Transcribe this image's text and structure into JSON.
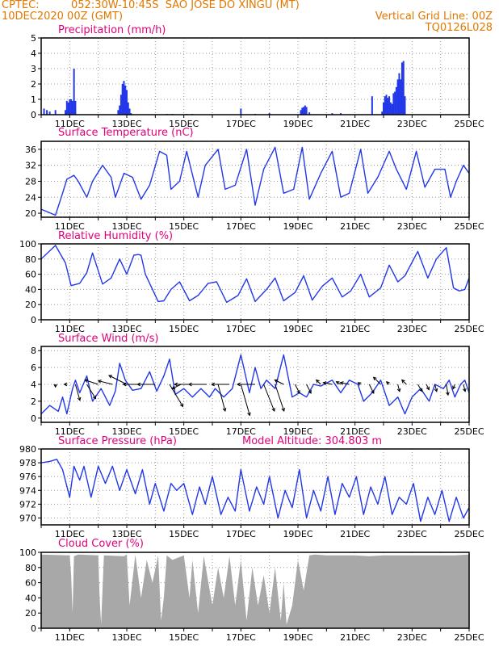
{
  "header": {
    "source": "CPTEC:",
    "location": "052:30W-10:45S  SAO JOSE DO XINGU (MT)",
    "run": "10DEC2020 00Z (GMT)",
    "grid_note": "Vertical Grid Line: 00Z",
    "code": "TQ0126L028"
  },
  "colors": {
    "header": "#e07800",
    "title": "#e0007a",
    "line": "#2238e8",
    "cloud": "#a8a8a8",
    "grid": "#9a9a9a"
  },
  "x_axis": {
    "start_day": 10,
    "end_day": 25,
    "tick_labels": [
      {
        "day": 11,
        "label": "11DEC"
      },
      {
        "day": 13,
        "label": "13DEC"
      },
      {
        "day": 15,
        "label": "15DEC"
      },
      {
        "day": 17,
        "label": "17DEC"
      },
      {
        "day": 19,
        "label": "19DEC"
      },
      {
        "day": 21,
        "label": "21DEC"
      },
      {
        "day": 23,
        "label": "23DEC"
      },
      {
        "day": 25,
        "label": "25DEC"
      }
    ]
  },
  "chart_data": [
    {
      "id": "precip",
      "type": "bar",
      "title": "Precipitation (mm/h)",
      "ylim": [
        0,
        5
      ],
      "yticks": [
        0,
        1,
        2,
        3,
        4,
        5
      ],
      "x": [
        10.1,
        10.2,
        10.3,
        10.5,
        10.85,
        10.9,
        10.95,
        11.0,
        11.05,
        11.1,
        11.15,
        11.2,
        12.7,
        12.75,
        12.8,
        12.85,
        12.9,
        12.95,
        13.0,
        13.05,
        13.1,
        13.15,
        14.4,
        14.5,
        14.6,
        15.1,
        15.3,
        17.0,
        17.5,
        18.0,
        19.1,
        19.15,
        19.2,
        19.25,
        19.3,
        19.4,
        20.2,
        20.5,
        21.6,
        21.95,
        22.0,
        22.05,
        22.1,
        22.15,
        22.2,
        22.25,
        22.3,
        22.35,
        22.4,
        22.45,
        22.5,
        22.55,
        22.6,
        22.65,
        22.7,
        22.75
      ],
      "values": [
        0.4,
        0.3,
        0.2,
        0.3,
        0.3,
        0.9,
        0.8,
        1.0,
        1.0,
        0.9,
        3.0,
        0.9,
        0.3,
        0.6,
        1.3,
        2.0,
        2.2,
        1.9,
        1.6,
        0.8,
        0.4,
        0.1,
        0.05,
        0.03,
        0.05,
        0.05,
        0.05,
        0.4,
        0.05,
        0.1,
        0.3,
        0.45,
        0.5,
        0.6,
        0.5,
        0.15,
        0.1,
        0.1,
        1.2,
        0.2,
        0.8,
        1.2,
        1.3,
        1.1,
        1.2,
        0.8,
        0.7,
        1.4,
        1.5,
        1.8,
        2.3,
        2.7,
        2.3,
        3.4,
        3.5,
        1.2
      ]
    },
    {
      "id": "temp",
      "type": "line",
      "title": "Surface Temperature (nC)",
      "ylim": [
        19,
        38
      ],
      "yticks": [
        20,
        24,
        28,
        32,
        36
      ],
      "x": [
        10.0,
        10.5,
        10.75,
        10.9,
        11.15,
        11.3,
        11.6,
        11.8,
        12.15,
        12.45,
        12.6,
        12.9,
        13.2,
        13.5,
        13.8,
        14.15,
        14.4,
        14.55,
        14.85,
        15.1,
        15.5,
        15.75,
        16.2,
        16.45,
        16.8,
        17.2,
        17.5,
        17.8,
        18.2,
        18.5,
        18.85,
        19.15,
        19.4,
        19.8,
        20.2,
        20.5,
        20.8,
        21.2,
        21.45,
        21.8,
        22.2,
        22.45,
        22.8,
        23.15,
        23.45,
        23.8,
        24.15,
        24.35,
        24.55,
        24.8,
        25.0
      ],
      "values": [
        21,
        19.5,
        25,
        28.5,
        29.5,
        28,
        24,
        28,
        32,
        29,
        24,
        30,
        29,
        23.5,
        27,
        35.5,
        34.5,
        26,
        28,
        35.5,
        24,
        32,
        36,
        26,
        27,
        36,
        22,
        31,
        36.5,
        25,
        26,
        36.5,
        23.5,
        30,
        35.5,
        24,
        25,
        36,
        25,
        29,
        35.5,
        31,
        26,
        35.5,
        26.5,
        31,
        31,
        24,
        28,
        32,
        30
      ]
    },
    {
      "id": "rh",
      "type": "line",
      "title": "Relative Humidity (%)",
      "ylim": [
        0,
        100
      ],
      "yticks": [
        0,
        20,
        40,
        60,
        80,
        100
      ],
      "x": [
        10.0,
        10.5,
        10.85,
        11.05,
        11.35,
        11.6,
        11.8,
        12.15,
        12.45,
        12.75,
        13.0,
        13.25,
        13.4,
        13.5,
        13.65,
        14.1,
        14.3,
        14.55,
        14.85,
        15.2,
        15.5,
        15.85,
        16.15,
        16.5,
        16.9,
        17.2,
        17.5,
        17.9,
        18.2,
        18.5,
        18.9,
        19.2,
        19.5,
        19.85,
        20.2,
        20.55,
        20.85,
        21.2,
        21.5,
        21.9,
        22.2,
        22.5,
        22.75,
        23.2,
        23.55,
        23.85,
        24.2,
        24.45,
        24.65,
        24.85,
        25.0
      ],
      "values": [
        80,
        98,
        75,
        45,
        48,
        62,
        88,
        47,
        55,
        80,
        60,
        85,
        86,
        85,
        60,
        24,
        25,
        40,
        50,
        25,
        32,
        48,
        50,
        23,
        32,
        54,
        24,
        40,
        55,
        25,
        36,
        58,
        26,
        44,
        55,
        30,
        38,
        60,
        30,
        42,
        72,
        50,
        58,
        90,
        55,
        80,
        95,
        42,
        38,
        40,
        55
      ]
    },
    {
      "id": "wind",
      "type": "line",
      "title": "Surface Wind (m/s)",
      "ylim": [
        -0.5,
        8.5
      ],
      "yticks": [
        0,
        2,
        4,
        6,
        8
      ],
      "x": [
        10.0,
        10.3,
        10.6,
        10.75,
        10.9,
        11.0,
        11.1,
        11.2,
        11.35,
        11.6,
        11.8,
        12.1,
        12.4,
        12.6,
        12.75,
        12.95,
        13.2,
        13.5,
        13.8,
        14.05,
        14.3,
        14.5,
        14.7,
        15.0,
        15.3,
        15.6,
        15.9,
        16.1,
        16.4,
        16.7,
        17.0,
        17.3,
        17.5,
        17.7,
        17.9,
        18.2,
        18.5,
        18.8,
        19.05,
        19.3,
        19.55,
        19.8,
        20.2,
        20.5,
        20.8,
        21.1,
        21.3,
        21.6,
        21.9,
        22.2,
        22.5,
        22.75,
        23.0,
        23.3,
        23.6,
        23.8,
        24.1,
        24.3,
        24.5,
        24.7,
        24.85,
        25.0
      ],
      "values": [
        0.5,
        1.5,
        0.8,
        2.5,
        0.5,
        2.0,
        3.5,
        4.5,
        3.0,
        5.0,
        2.0,
        3.5,
        1.5,
        3.2,
        6.5,
        4.5,
        3.3,
        3.5,
        5.5,
        3.2,
        5.0,
        7.0,
        2.8,
        3.5,
        2.5,
        3.5,
        2.5,
        3.5,
        2.5,
        3.5,
        7.5,
        3.0,
        6.0,
        3.5,
        4.5,
        3.5,
        7.5,
        2.5,
        3.0,
        2.5,
        4.0,
        3.8,
        4.5,
        3.0,
        4.5,
        4.0,
        2.0,
        3.0,
        4.5,
        1.5,
        2.5,
        0.5,
        2.5,
        3.5,
        2.0,
        4.0,
        3.5,
        4.5,
        2.5,
        4.0,
        4.5,
        3.0
      ],
      "arrows": [
        {
          "x": 10.5,
          "u": 0,
          "v": 0.3
        },
        {
          "x": 10.9,
          "u": -0.3,
          "v": 0
        },
        {
          "x": 11.2,
          "u": 0.5,
          "v": 1.8
        },
        {
          "x": 11.6,
          "u": 1.0,
          "v": 1.6
        },
        {
          "x": 12.0,
          "u": -1.5,
          "v": -0.5
        },
        {
          "x": 12.5,
          "u": -1.6,
          "v": -0.4
        },
        {
          "x": 13.0,
          "u": -2.0,
          "v": -1.0
        },
        {
          "x": 13.5,
          "u": -2.0,
          "v": 0
        },
        {
          "x": 14.0,
          "u": -2.0,
          "v": 0
        },
        {
          "x": 14.5,
          "u": 1.5,
          "v": 2.5
        },
        {
          "x": 14.9,
          "u": -1.0,
          "v": 0.5
        },
        {
          "x": 15.3,
          "u": -2.0,
          "v": 0
        },
        {
          "x": 15.8,
          "u": -2.0,
          "v": 0
        },
        {
          "x": 16.2,
          "u": 0.8,
          "v": 3.0
        },
        {
          "x": 16.6,
          "u": -2.0,
          "v": 0
        },
        {
          "x": 17.0,
          "u": 1.0,
          "v": 3.5
        },
        {
          "x": 17.5,
          "u": -2.0,
          "v": 0
        },
        {
          "x": 17.8,
          "u": 1.2,
          "v": 3.0
        },
        {
          "x": 18.2,
          "u": 1.0,
          "v": 3.0
        },
        {
          "x": 18.5,
          "u": -1.0,
          "v": -0.5
        },
        {
          "x": 18.9,
          "u": 0.5,
          "v": 1.0
        },
        {
          "x": 19.3,
          "u": 0.5,
          "v": 1.0
        },
        {
          "x": 19.8,
          "u": -0.5,
          "v": -0.5
        },
        {
          "x": 20.2,
          "u": -1.0,
          "v": -0.2
        },
        {
          "x": 20.5,
          "u": -0.5,
          "v": -0.3
        },
        {
          "x": 20.8,
          "u": -1.0,
          "v": -0.2
        },
        {
          "x": 21.2,
          "u": -0.3,
          "v": -0.2
        },
        {
          "x": 21.5,
          "u": 0.5,
          "v": 1.0
        },
        {
          "x": 21.9,
          "u": -0.8,
          "v": -0.8
        },
        {
          "x": 22.2,
          "u": -0.3,
          "v": -0.3
        },
        {
          "x": 22.5,
          "u": 0.2,
          "v": 0.8
        },
        {
          "x": 22.8,
          "u": -0.5,
          "v": -0.5
        },
        {
          "x": 23.2,
          "u": 0.5,
          "v": 0.8
        },
        {
          "x": 23.5,
          "u": 0.3,
          "v": 0.6
        },
        {
          "x": 23.8,
          "u": 0.2,
          "v": 0.8
        },
        {
          "x": 24.2,
          "u": 0.2,
          "v": 1.2
        },
        {
          "x": 24.5,
          "u": -0.2,
          "v": 0.5
        },
        {
          "x": 24.8,
          "u": 0.2,
          "v": 0.8
        }
      ]
    },
    {
      "id": "pres",
      "type": "line",
      "title": "Surface Pressure (hPa)",
      "annotation": "Model Altitude: 304.803 m",
      "ylim": [
        969,
        980
      ],
      "yticks": [
        970,
        972,
        974,
        976,
        978,
        980
      ],
      "x": [
        10.0,
        10.3,
        10.55,
        10.75,
        11.0,
        11.15,
        11.35,
        11.5,
        11.75,
        12.0,
        12.25,
        12.5,
        12.75,
        13.0,
        13.3,
        13.55,
        13.8,
        14.0,
        14.3,
        14.55,
        14.75,
        15.0,
        15.3,
        15.55,
        15.75,
        16.0,
        16.3,
        16.55,
        16.8,
        17.0,
        17.3,
        17.55,
        17.8,
        18.0,
        18.3,
        18.55,
        18.8,
        19.05,
        19.3,
        19.55,
        19.8,
        20.05,
        20.3,
        20.55,
        20.8,
        21.05,
        21.3,
        21.55,
        21.8,
        22.05,
        22.3,
        22.55,
        22.8,
        23.05,
        23.3,
        23.55,
        23.8,
        24.05,
        24.3,
        24.55,
        24.8,
        25.0
      ],
      "values": [
        978,
        978.2,
        978.5,
        977,
        973,
        977.5,
        975.5,
        977.5,
        973,
        977.5,
        975,
        977.5,
        974,
        977,
        973.5,
        977,
        972,
        975,
        971,
        975,
        974,
        975,
        970.5,
        974.5,
        972,
        976,
        970.5,
        973,
        971,
        977,
        971,
        974.5,
        972,
        976,
        970,
        974,
        971.5,
        977,
        970,
        974,
        971,
        976,
        970.5,
        975,
        973,
        976,
        970.5,
        974.5,
        972,
        976,
        970.5,
        973,
        972,
        975,
        969.5,
        973,
        970.5,
        974,
        969.5,
        973,
        970,
        971.5
      ]
    },
    {
      "id": "cloud",
      "type": "area",
      "title": "Cloud Cover (%)",
      "ylim": [
        0,
        100
      ],
      "yticks": [
        0,
        20,
        40,
        60,
        80,
        100
      ],
      "x": [
        10.0,
        11.0,
        11.05,
        11.1,
        11.15,
        11.3,
        12.0,
        12.05,
        12.1,
        12.2,
        12.9,
        13.0,
        13.1,
        13.3,
        13.5,
        13.7,
        13.9,
        14.1,
        14.2,
        14.3,
        14.4,
        14.6,
        15.0,
        15.2,
        15.3,
        15.5,
        15.7,
        16.0,
        16.2,
        16.4,
        16.6,
        16.8,
        17.0,
        17.2,
        17.4,
        17.6,
        17.8,
        18.0,
        18.2,
        18.4,
        18.5,
        18.6,
        18.8,
        19.0,
        19.2,
        19.4,
        19.6,
        20.0,
        20.5,
        21.0,
        21.5,
        22.0,
        22.5,
        23.0,
        23.5,
        24.0,
        24.5,
        25.0
      ],
      "values": [
        97,
        96,
        70,
        20,
        95,
        97,
        96,
        40,
        5,
        96,
        95,
        97,
        30,
        97,
        40,
        90,
        60,
        96,
        10,
        40,
        96,
        90,
        96,
        40,
        90,
        20,
        95,
        30,
        80,
        40,
        95,
        30,
        90,
        10,
        80,
        30,
        70,
        20,
        80,
        10,
        60,
        5,
        30,
        90,
        50,
        96,
        97,
        96,
        96,
        96,
        95,
        96,
        96,
        96,
        96,
        96,
        96,
        97
      ]
    }
  ]
}
